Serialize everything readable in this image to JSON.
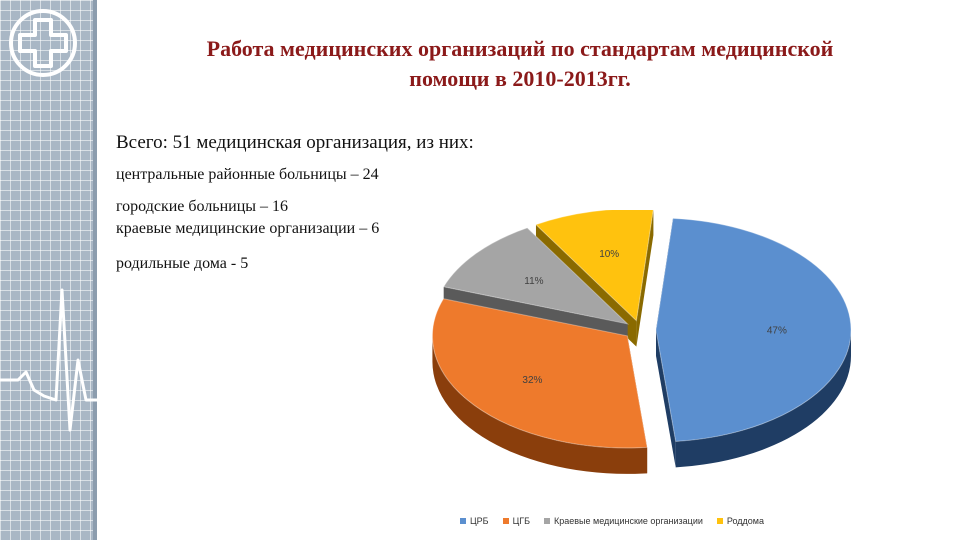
{
  "title": {
    "line1": "Работа медицинских организаций по стандартам медицинской",
    "line2": "помощи в 2010-2013гг."
  },
  "summary": {
    "total": "Всего: 51 медицинская организация, из них:",
    "crb": "центральные районные больницы –  24",
    "city": "городские больницы – 16",
    "regional": "краевые медицинские организации – 6",
    "maternity": "родильные дома - 5"
  },
  "chart_data": {
    "type": "pie",
    "title": "",
    "categories": [
      "ЦРБ",
      "ЦГБ",
      "Краевые медицинские организации",
      "Роддома"
    ],
    "values": [
      47,
      32,
      11,
      10
    ],
    "data_labels": [
      "47%",
      "32%",
      "11%",
      "10%"
    ],
    "colors": [
      "#5b8fcf",
      "#ee7a2c",
      "#a5a5a5",
      "#ffc20e"
    ],
    "dark_colors": [
      "#1f3d64",
      "#8a3e0c",
      "#5a5a5a",
      "#8a6a00"
    ],
    "legend_position": "bottom",
    "three_d": true,
    "exploded": true
  }
}
